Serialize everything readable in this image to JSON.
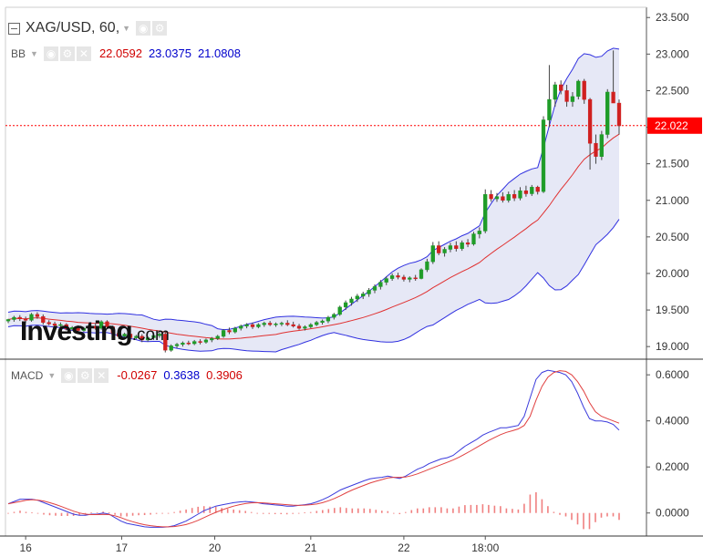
{
  "header": {
    "symbol": "XAG/USD, 60,",
    "bb_label": "BB",
    "bb_values": [
      "22.0592",
      "23.0375",
      "21.0808"
    ],
    "macd_label": "MACD",
    "macd_values": [
      "-0.0267",
      "0.3638",
      "0.3906"
    ]
  },
  "icons": {
    "collapse": "collapse-icon",
    "eye": "eye-icon",
    "gear": "gear-icon",
    "close": "close-icon",
    "caret": "chevron-down-icon"
  },
  "logo": {
    "name": "Investing",
    "suffix": ".com"
  },
  "colors": {
    "up": "#1f9c28",
    "down": "#d02020",
    "bb_upper": "#3030e0",
    "bb_mid": "#e03030",
    "bb_fill": "#e2e4f4",
    "macd": "#3b3bdc",
    "signal": "#e04040",
    "hist": "#f08080",
    "price_line": "#ff0000",
    "label_red": "#d00000",
    "label_blue": "#0000cc"
  },
  "chart_data": [
    {
      "type": "candlestick",
      "title": "XAG/USD, 60,",
      "x_ticks": [
        "16",
        "17",
        "20",
        "21",
        "22",
        "18:00"
      ],
      "y_ticks": [
        "23.500",
        "23.000",
        "22.500",
        "22.000",
        "21.500",
        "21.000",
        "20.500",
        "20.000",
        "19.500",
        "19.000"
      ],
      "ylim": [
        18.84,
        23.64
      ],
      "current_price_label": "22.022",
      "current_price": 22.022,
      "bollinger_bands": {
        "mid": 22.0592,
        "upper": 23.0375,
        "lower": 21.0808
      },
      "grid": false,
      "candles": [
        [
          19.35,
          19.38,
          19.32,
          19.37
        ],
        [
          19.37,
          19.42,
          19.34,
          19.4
        ],
        [
          19.4,
          19.43,
          19.35,
          19.38
        ],
        [
          19.38,
          19.41,
          19.33,
          19.36
        ],
        [
          19.36,
          19.46,
          19.34,
          19.44
        ],
        [
          19.44,
          19.47,
          19.38,
          19.41
        ],
        [
          19.41,
          19.44,
          19.3,
          19.33
        ],
        [
          19.33,
          19.36,
          19.29,
          19.31
        ],
        [
          19.31,
          19.34,
          19.26,
          19.29
        ],
        [
          19.29,
          19.33,
          19.25,
          19.3
        ],
        [
          19.3,
          19.32,
          19.22,
          19.24
        ],
        [
          19.24,
          19.28,
          19.22,
          19.26
        ],
        [
          19.26,
          19.29,
          19.2,
          19.22
        ],
        [
          19.22,
          19.27,
          19.2,
          19.25
        ],
        [
          19.25,
          19.31,
          19.21,
          19.28
        ],
        [
          19.28,
          19.32,
          19.23,
          19.25
        ],
        [
          19.25,
          19.36,
          19.23,
          19.34
        ],
        [
          19.34,
          19.36,
          19.25,
          19.27
        ],
        [
          19.27,
          19.29,
          19.16,
          19.18
        ],
        [
          19.18,
          19.22,
          19.1,
          19.14
        ],
        [
          19.14,
          19.19,
          19.12,
          19.17
        ],
        [
          19.17,
          19.19,
          19.09,
          19.12
        ],
        [
          19.12,
          19.16,
          19.1,
          19.14
        ],
        [
          19.14,
          19.17,
          19.06,
          19.09
        ],
        [
          19.09,
          19.14,
          19.07,
          19.12
        ],
        [
          19.12,
          19.17,
          19.09,
          19.15
        ],
        [
          19.15,
          19.2,
          19.12,
          19.17
        ],
        [
          19.17,
          19.2,
          18.92,
          18.95
        ],
        [
          18.95,
          19.03,
          18.93,
          19.01
        ],
        [
          19.01,
          19.05,
          18.98,
          19.03
        ],
        [
          19.03,
          19.07,
          19.0,
          19.05
        ],
        [
          19.05,
          19.08,
          19.02,
          19.04
        ],
        [
          19.04,
          19.09,
          19.02,
          19.07
        ],
        [
          19.07,
          19.1,
          19.03,
          19.06
        ],
        [
          19.06,
          19.11,
          19.04,
          19.09
        ],
        [
          19.09,
          19.13,
          19.06,
          19.11
        ],
        [
          19.11,
          19.16,
          19.09,
          19.14
        ],
        [
          19.14,
          19.24,
          19.12,
          19.22
        ],
        [
          19.22,
          19.26,
          19.17,
          19.2
        ],
        [
          19.2,
          19.27,
          19.18,
          19.25
        ],
        [
          19.25,
          19.3,
          19.22,
          19.28
        ],
        [
          19.28,
          19.32,
          19.25,
          19.3
        ],
        [
          19.3,
          19.33,
          19.24,
          19.27
        ],
        [
          19.27,
          19.32,
          19.25,
          19.3
        ],
        [
          19.3,
          19.34,
          19.27,
          19.32
        ],
        [
          19.32,
          19.35,
          19.28,
          19.3
        ],
        [
          19.3,
          19.33,
          19.27,
          19.31
        ],
        [
          19.31,
          19.34,
          19.28,
          19.32
        ],
        [
          19.32,
          19.36,
          19.28,
          19.3
        ],
        [
          19.3,
          19.34,
          19.26,
          19.28
        ],
        [
          19.28,
          19.31,
          19.23,
          19.25
        ],
        [
          19.25,
          19.29,
          19.22,
          19.27
        ],
        [
          19.27,
          19.32,
          19.25,
          19.3
        ],
        [
          19.3,
          19.35,
          19.28,
          19.33
        ],
        [
          19.33,
          19.37,
          19.3,
          19.35
        ],
        [
          19.35,
          19.42,
          19.32,
          19.4
        ],
        [
          19.4,
          19.46,
          19.37,
          19.44
        ],
        [
          19.44,
          19.56,
          19.42,
          19.54
        ],
        [
          19.54,
          19.63,
          19.5,
          19.6
        ],
        [
          19.6,
          19.68,
          19.56,
          19.65
        ],
        [
          19.65,
          19.72,
          19.61,
          19.69
        ],
        [
          19.69,
          19.75,
          19.65,
          19.72
        ],
        [
          19.72,
          19.8,
          19.68,
          19.77
        ],
        [
          19.77,
          19.85,
          19.73,
          19.82
        ],
        [
          19.82,
          19.91,
          19.78,
          19.88
        ],
        [
          19.88,
          19.96,
          19.84,
          19.93
        ],
        [
          19.93,
          20.0,
          19.9,
          19.97
        ],
        [
          19.97,
          20.01,
          19.92,
          19.95
        ],
        [
          19.95,
          19.98,
          19.89,
          19.92
        ],
        [
          19.92,
          19.96,
          19.88,
          19.94
        ],
        [
          19.94,
          19.98,
          19.9,
          19.93
        ],
        [
          19.93,
          20.07,
          19.92,
          20.05
        ],
        [
          20.05,
          20.2,
          20.02,
          20.16
        ],
        [
          20.16,
          20.43,
          20.13,
          20.38
        ],
        [
          20.38,
          20.44,
          20.25,
          20.28
        ],
        [
          20.28,
          20.36,
          20.23,
          20.33
        ],
        [
          20.33,
          20.42,
          20.29,
          20.38
        ],
        [
          20.38,
          20.44,
          20.3,
          20.34
        ],
        [
          20.34,
          20.45,
          20.31,
          20.42
        ],
        [
          20.42,
          20.47,
          20.36,
          20.4
        ],
        [
          20.4,
          20.57,
          20.38,
          20.54
        ],
        [
          20.54,
          20.63,
          20.48,
          20.58
        ],
        [
          20.58,
          21.15,
          20.55,
          21.08
        ],
        [
          21.08,
          21.14,
          20.98,
          21.02
        ],
        [
          21.02,
          21.1,
          20.98,
          21.05
        ],
        [
          21.05,
          21.11,
          20.97,
          21.0
        ],
        [
          21.0,
          21.12,
          20.97,
          21.08
        ],
        [
          21.08,
          21.14,
          20.99,
          21.03
        ],
        [
          21.03,
          21.18,
          21.0,
          21.13
        ],
        [
          21.13,
          21.2,
          21.05,
          21.09
        ],
        [
          21.09,
          21.21,
          21.06,
          21.18
        ],
        [
          21.18,
          21.2,
          21.08,
          21.12
        ],
        [
          21.12,
          22.15,
          21.1,
          22.1
        ],
        [
          22.1,
          22.85,
          22.0,
          22.38
        ],
        [
          22.38,
          22.62,
          22.28,
          22.58
        ],
        [
          22.58,
          22.64,
          22.45,
          22.5
        ],
        [
          22.5,
          22.58,
          22.28,
          22.35
        ],
        [
          22.35,
          22.48,
          22.28,
          22.42
        ],
        [
          22.42,
          22.65,
          22.38,
          22.63
        ],
        [
          22.63,
          22.66,
          22.32,
          22.38
        ],
        [
          22.38,
          22.4,
          21.42,
          21.78
        ],
        [
          21.78,
          21.9,
          21.5,
          21.6
        ],
        [
          21.6,
          21.95,
          21.55,
          21.9
        ],
        [
          21.9,
          22.52,
          21.85,
          22.48
        ],
        [
          22.48,
          23.05,
          22.35,
          22.33
        ],
        [
          22.33,
          22.38,
          21.9,
          22.02
        ]
      ]
    },
    {
      "type": "line",
      "title": "MACD",
      "y_ticks": [
        "0.6000",
        "0.4000",
        "0.2000",
        "0.0000"
      ],
      "ylim": [
        -0.1,
        0.66
      ],
      "grid": false,
      "series": [
        {
          "name": "MACD",
          "values": [
            0.04,
            0.05,
            0.06,
            0.06,
            0.06,
            0.055,
            0.045,
            0.035,
            0.025,
            0.015,
            0.005,
            -0.005,
            -0.01,
            -0.01,
            -0.005,
            -0.005,
            0.0,
            -0.005,
            -0.02,
            -0.035,
            -0.045,
            -0.05,
            -0.055,
            -0.06,
            -0.062,
            -0.062,
            -0.062,
            -0.06,
            -0.055,
            -0.045,
            -0.035,
            -0.02,
            -0.005,
            0.01,
            0.02,
            0.03,
            0.035,
            0.04,
            0.045,
            0.048,
            0.05,
            0.048,
            0.045,
            0.04,
            0.038,
            0.035,
            0.033,
            0.03,
            0.03,
            0.033,
            0.036,
            0.04,
            0.048,
            0.058,
            0.07,
            0.085,
            0.1,
            0.11,
            0.12,
            0.13,
            0.14,
            0.148,
            0.152,
            0.155,
            0.16,
            0.155,
            0.15,
            0.16,
            0.175,
            0.19,
            0.2,
            0.215,
            0.225,
            0.235,
            0.24,
            0.25,
            0.27,
            0.29,
            0.305,
            0.32,
            0.338,
            0.35,
            0.36,
            0.37,
            0.37,
            0.375,
            0.38,
            0.42,
            0.5,
            0.58,
            0.61,
            0.62,
            0.615,
            0.61,
            0.6,
            0.57,
            0.52,
            0.46,
            0.41,
            0.4,
            0.4,
            0.395,
            0.385,
            0.36
          ]
        },
        {
          "name": "Signal",
          "values": [
            0.04,
            0.045,
            0.05,
            0.055,
            0.058,
            0.056,
            0.052,
            0.045,
            0.037,
            0.028,
            0.018,
            0.008,
            0.0,
            -0.005,
            -0.007,
            -0.007,
            -0.006,
            -0.007,
            -0.012,
            -0.02,
            -0.03,
            -0.038,
            -0.045,
            -0.051,
            -0.055,
            -0.058,
            -0.06,
            -0.06,
            -0.059,
            -0.055,
            -0.05,
            -0.042,
            -0.032,
            -0.02,
            -0.008,
            0.003,
            0.013,
            0.022,
            0.03,
            0.036,
            0.041,
            0.044,
            0.045,
            0.044,
            0.042,
            0.04,
            0.038,
            0.036,
            0.034,
            0.033,
            0.034,
            0.036,
            0.039,
            0.045,
            0.053,
            0.063,
            0.075,
            0.088,
            0.1,
            0.11,
            0.12,
            0.13,
            0.138,
            0.145,
            0.152,
            0.155,
            0.155,
            0.156,
            0.162,
            0.17,
            0.18,
            0.19,
            0.2,
            0.21,
            0.22,
            0.23,
            0.242,
            0.256,
            0.27,
            0.285,
            0.3,
            0.315,
            0.328,
            0.34,
            0.35,
            0.357,
            0.365,
            0.38,
            0.42,
            0.49,
            0.55,
            0.59,
            0.61,
            0.618,
            0.615,
            0.6,
            0.57,
            0.53,
            0.48,
            0.44,
            0.42,
            0.41,
            0.4,
            0.39
          ]
        },
        {
          "name": "Histogram",
          "values": [
            0.0,
            0.005,
            0.01,
            0.005,
            0.002,
            -0.001,
            -0.007,
            -0.01,
            -0.012,
            -0.013,
            -0.013,
            -0.013,
            -0.01,
            -0.005,
            0.002,
            0.002,
            0.006,
            0.002,
            -0.008,
            -0.015,
            -0.015,
            -0.012,
            -0.01,
            -0.009,
            -0.007,
            -0.004,
            -0.002,
            0.0,
            0.004,
            0.01,
            0.015,
            0.022,
            0.027,
            0.03,
            0.028,
            0.027,
            0.022,
            0.018,
            0.015,
            0.012,
            0.009,
            0.004,
            0.0,
            -0.004,
            -0.004,
            -0.005,
            -0.005,
            -0.006,
            -0.004,
            0.0,
            0.002,
            0.004,
            0.009,
            0.013,
            0.017,
            0.022,
            0.025,
            0.022,
            0.02,
            0.02,
            0.02,
            0.018,
            0.014,
            0.01,
            0.008,
            0.0,
            -0.005,
            0.004,
            0.013,
            0.02,
            0.02,
            0.025,
            0.025,
            0.025,
            0.02,
            0.02,
            0.028,
            0.034,
            0.035,
            0.035,
            0.038,
            0.035,
            0.032,
            0.03,
            0.02,
            0.018,
            0.015,
            0.04,
            0.08,
            0.09,
            0.06,
            0.03,
            0.005,
            -0.008,
            -0.015,
            -0.03,
            -0.05,
            -0.07,
            -0.07,
            -0.04,
            -0.02,
            -0.015,
            -0.015,
            -0.03
          ]
        }
      ]
    }
  ]
}
